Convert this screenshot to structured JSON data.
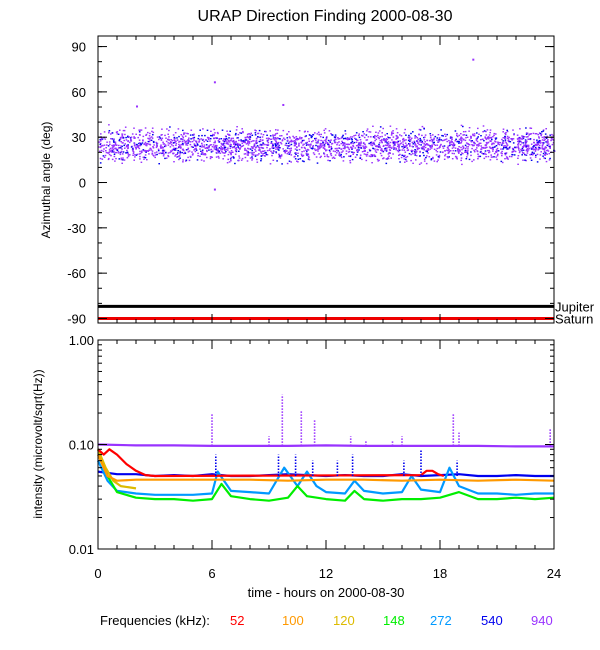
{
  "title": "URAP Direction Finding  2000-08-30",
  "xlabel": "time - hours on 2000-08-30",
  "x_ticks": [
    "0",
    "6",
    "12",
    "18",
    "24"
  ],
  "legend": {
    "label": "Frequencies (kHz):",
    "items": [
      {
        "text": "52",
        "color": "#ff0000"
      },
      {
        "text": "100",
        "color": "#ff9900"
      },
      {
        "text": "120",
        "color": "#ddbb00"
      },
      {
        "text": "148",
        "color": "#00ee00"
      },
      {
        "text": "272",
        "color": "#0099ff"
      },
      {
        "text": "540",
        "color": "#0000ee"
      },
      {
        "text": "940",
        "color": "#9933ff"
      }
    ]
  },
  "chart_data": [
    {
      "type": "scatter",
      "name": "azimuth",
      "title": "URAP Direction Finding  2000-08-30",
      "xlabel": "time - hours on 2000-08-30",
      "ylabel": "Azimuthal angle (deg)",
      "xlim": [
        0,
        24
      ],
      "ylim": [
        -93,
        97
      ],
      "x_ticks": [
        0,
        6,
        12,
        18,
        24
      ],
      "y_ticks": [
        90,
        60,
        30,
        0,
        -30,
        -60,
        -90
      ],
      "y_tick_labels": [
        "90",
        "60",
        "30",
        "0",
        "-30",
        "-60",
        "-90"
      ],
      "reference_lines": [
        {
          "name": "Jupiter",
          "label": "Jupiter",
          "y": -82,
          "color": "#000000"
        },
        {
          "name": "Saturn",
          "label": "Saturn",
          "y": -90,
          "color": "#ee0000"
        }
      ],
      "scatter_band": {
        "center": 25,
        "spread": 7,
        "colors": [
          "#9933ff",
          "#0000ee"
        ]
      },
      "outliers": [
        {
          "x": 2.0,
          "y": 51
        },
        {
          "x": 6.1,
          "y": 67
        },
        {
          "x": 6.1,
          "y": -4
        },
        {
          "x": 9.7,
          "y": 52
        },
        {
          "x": 19.7,
          "y": 82
        }
      ]
    },
    {
      "type": "line",
      "name": "intensity",
      "ylabel": "intensity (microvolt/sqrt(Hz))",
      "yscale": "log",
      "xlim": [
        0,
        24
      ],
      "ylim": [
        0.01,
        1.0
      ],
      "x_ticks": [
        0,
        6,
        12,
        18,
        24
      ],
      "y_ticks": [
        1.0,
        0.1,
        0.01
      ],
      "y_tick_labels": [
        "1.00",
        "0.10",
        "0.01"
      ],
      "series": [
        {
          "name": "52",
          "color": "#ff0000",
          "x": [
            0,
            0.3,
            0.6,
            1.0,
            1.5,
            2.0,
            2.5,
            3.0,
            17.0,
            17.3,
            17.6,
            17.9,
            18.2
          ],
          "y": [
            0.09,
            0.08,
            0.09,
            0.08,
            0.065,
            0.056,
            0.051,
            0.05,
            0.051,
            0.056,
            0.056,
            0.052,
            0.05
          ]
        },
        {
          "name": "100",
          "color": "#ff9900",
          "x": [
            0,
            0.5,
            1.0,
            2.0,
            4.0,
            6.0,
            8.0,
            10.0,
            12.0,
            14.0,
            16.0,
            18.0,
            20.0,
            22.0,
            24.0
          ],
          "y": [
            0.08,
            0.05,
            0.045,
            0.046,
            0.046,
            0.046,
            0.046,
            0.045,
            0.046,
            0.046,
            0.045,
            0.046,
            0.045,
            0.046,
            0.045
          ]
        },
        {
          "name": "120",
          "color": "#ddbb00",
          "x": [
            0,
            0.4,
            0.8,
            1.2,
            2.0
          ],
          "y": [
            0.09,
            0.06,
            0.045,
            0.04,
            0.038
          ]
        },
        {
          "name": "148",
          "color": "#00ee00",
          "x": [
            0,
            0.5,
            1.0,
            2.0,
            3.0,
            4.0,
            5.0,
            6.0,
            6.5,
            7.0,
            8.0,
            9.0,
            10.0,
            10.5,
            11.0,
            12.0,
            13.0,
            13.5,
            14.0,
            15.0,
            16.0,
            17.0,
            18.0,
            19.0,
            20.0,
            21.0,
            22.0,
            23.0,
            24.0
          ],
          "y": [
            0.09,
            0.05,
            0.035,
            0.031,
            0.03,
            0.03,
            0.029,
            0.03,
            0.042,
            0.032,
            0.03,
            0.029,
            0.031,
            0.04,
            0.032,
            0.03,
            0.029,
            0.036,
            0.03,
            0.029,
            0.03,
            0.03,
            0.031,
            0.035,
            0.03,
            0.03,
            0.031,
            0.03,
            0.031
          ]
        },
        {
          "name": "272",
          "color": "#0099ff",
          "x": [
            0,
            0.5,
            1.0,
            2.0,
            3.0,
            4.0,
            5.0,
            6.0,
            6.3,
            7.0,
            8.0,
            9.0,
            9.8,
            10.5,
            11.0,
            11.5,
            12.0,
            13.0,
            13.5,
            14.0,
            15.0,
            16.0,
            16.5,
            17.0,
            18.0,
            18.5,
            19.0,
            20.0,
            21.0,
            22.0,
            23.0,
            24.0
          ],
          "y": [
            0.07,
            0.045,
            0.036,
            0.034,
            0.033,
            0.033,
            0.033,
            0.034,
            0.055,
            0.036,
            0.035,
            0.034,
            0.06,
            0.04,
            0.055,
            0.04,
            0.035,
            0.034,
            0.045,
            0.036,
            0.034,
            0.035,
            0.05,
            0.037,
            0.035,
            0.06,
            0.04,
            0.034,
            0.034,
            0.033,
            0.034,
            0.034
          ]
        },
        {
          "name": "540",
          "color": "#0000ee",
          "x": [
            0,
            1,
            2,
            3,
            4,
            5,
            6,
            7,
            8,
            9,
            10,
            11,
            12,
            13,
            14,
            15,
            16,
            17,
            18,
            19,
            20,
            21,
            22,
            23,
            24
          ],
          "y": [
            0.055,
            0.052,
            0.052,
            0.05,
            0.051,
            0.05,
            0.052,
            0.05,
            0.05,
            0.051,
            0.052,
            0.051,
            0.05,
            0.051,
            0.05,
            0.05,
            0.052,
            0.05,
            0.051,
            0.052,
            0.05,
            0.05,
            0.051,
            0.05,
            0.05
          ]
        },
        {
          "name": "940",
          "color": "#9933ff",
          "x": [
            0,
            2,
            4,
            6,
            8,
            10,
            12,
            14,
            16,
            18,
            20,
            22,
            24
          ],
          "y": [
            0.1,
            0.098,
            0.098,
            0.097,
            0.097,
            0.097,
            0.098,
            0.097,
            0.097,
            0.097,
            0.097,
            0.096,
            0.096
          ]
        }
      ],
      "spikes": [
        {
          "x": 6.0,
          "ymax": 0.2,
          "color": "#9933ff"
        },
        {
          "x": 9.7,
          "ymax": 0.3,
          "color": "#9933ff"
        },
        {
          "x": 10.7,
          "ymax": 0.21,
          "color": "#9933ff"
        },
        {
          "x": 11.4,
          "ymax": 0.17,
          "color": "#9933ff"
        },
        {
          "x": 9.0,
          "ymax": 0.12,
          "color": "#9933ff"
        },
        {
          "x": 13.3,
          "ymax": 0.12,
          "color": "#9933ff"
        },
        {
          "x": 14.1,
          "ymax": 0.11,
          "color": "#9933ff"
        },
        {
          "x": 15.5,
          "ymax": 0.11,
          "color": "#9933ff"
        },
        {
          "x": 16.0,
          "ymax": 0.12,
          "color": "#9933ff"
        },
        {
          "x": 18.7,
          "ymax": 0.2,
          "color": "#9933ff"
        },
        {
          "x": 19.0,
          "ymax": 0.13,
          "color": "#9933ff"
        },
        {
          "x": 23.8,
          "ymax": 0.14,
          "color": "#9933ff"
        },
        {
          "x": 6.2,
          "ymax": 0.08,
          "color": "#0000ee"
        },
        {
          "x": 9.5,
          "ymax": 0.08,
          "color": "#0000ee"
        },
        {
          "x": 10.4,
          "ymax": 0.08,
          "color": "#0000ee"
        },
        {
          "x": 11.3,
          "ymax": 0.07,
          "color": "#0000ee"
        },
        {
          "x": 12.6,
          "ymax": 0.07,
          "color": "#0000ee"
        },
        {
          "x": 13.4,
          "ymax": 0.08,
          "color": "#0000ee"
        },
        {
          "x": 16.1,
          "ymax": 0.07,
          "color": "#0000ee"
        },
        {
          "x": 17.0,
          "ymax": 0.09,
          "color": "#0000ee"
        },
        {
          "x": 18.9,
          "ymax": 0.07,
          "color": "#0000ee"
        }
      ]
    }
  ]
}
